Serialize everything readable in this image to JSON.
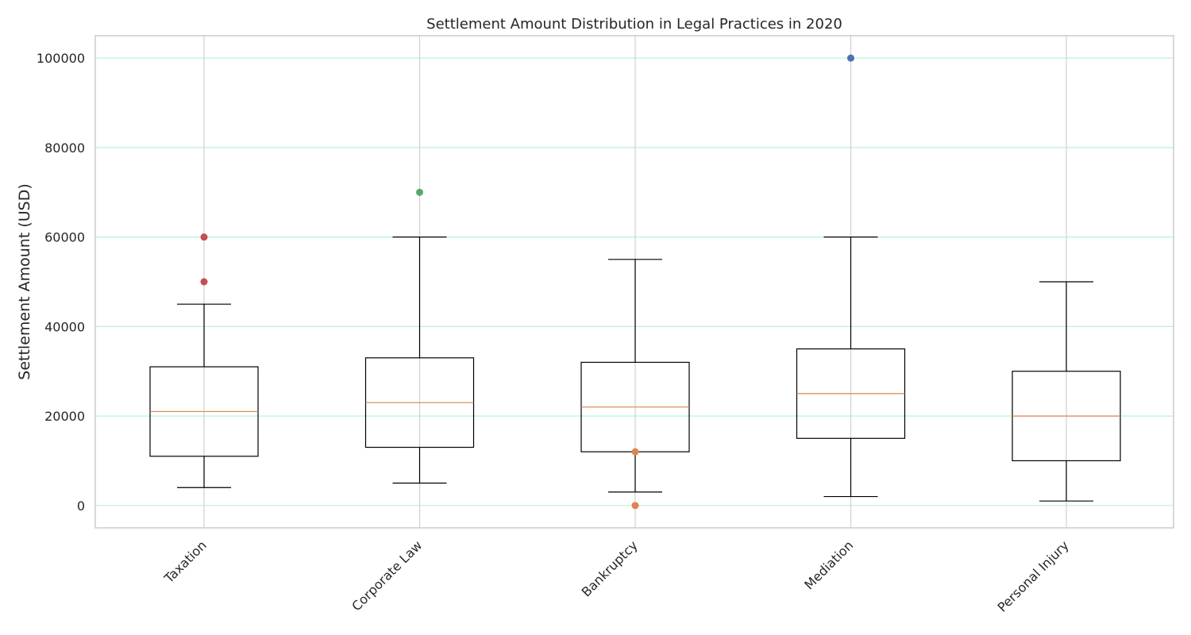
{
  "chart_data": {
    "type": "box",
    "title": "Settlement Amount Distribution in Legal Practices in 2020",
    "xlabel": "",
    "ylabel": "Settlement Amount (USD)",
    "ylim": [
      -5000,
      105000
    ],
    "yticks": [
      0,
      20000,
      40000,
      60000,
      80000,
      100000
    ],
    "ytick_labels": [
      "0",
      "20000",
      "40000",
      "60000",
      "80000",
      "100000"
    ],
    "grid": {
      "horizontal": true,
      "vertical": true
    },
    "colors": {
      "box": "#000000",
      "median": "#dd8452",
      "hgrid": "#b4f5d2",
      "vgrid": "#d0d0d0",
      "frame": "#cccccc"
    },
    "categories": [
      "Taxation",
      "Corporate Law",
      "Bankruptcy",
      "Mediation",
      "Personal Injury"
    ],
    "boxes": [
      {
        "category": "Taxation",
        "whisker_low": 4000,
        "q1": 11000,
        "median": 21000,
        "q3": 31000,
        "whisker_high": 45000,
        "outliers": [
          50000,
          60000
        ],
        "outlier_color": "#c44e52"
      },
      {
        "category": "Corporate Law",
        "whisker_low": 5000,
        "q1": 13000,
        "median": 23000,
        "q3": 33000,
        "whisker_high": 60000,
        "outliers": [
          70000
        ],
        "outlier_color": "#55a868"
      },
      {
        "category": "Bankruptcy",
        "whisker_low": 3000,
        "q1": 12000,
        "median": 22000,
        "q3": 32000,
        "whisker_high": 55000,
        "outliers": [
          12000,
          0
        ],
        "outlier_color": "#dd8452"
      },
      {
        "category": "Mediation",
        "whisker_low": 2000,
        "q1": 15000,
        "median": 25000,
        "q3": 35000,
        "whisker_high": 60000,
        "outliers": [
          100000
        ],
        "outlier_color": "#4c72b0"
      },
      {
        "category": "Personal Injury",
        "whisker_low": 1000,
        "q1": 10000,
        "median": 20000,
        "q3": 30000,
        "whisker_high": 50000,
        "outliers": []
      }
    ]
  }
}
